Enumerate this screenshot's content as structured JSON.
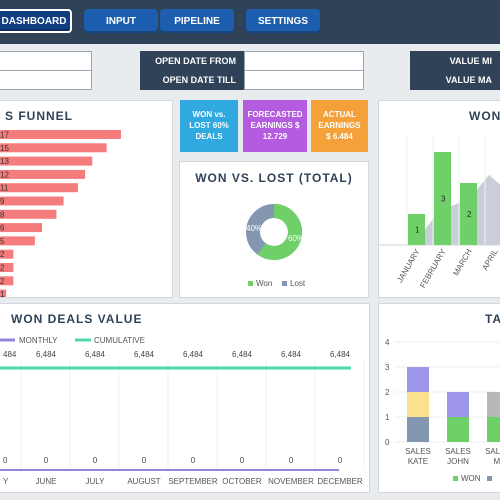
{
  "nav": {
    "dashboard": "DASHBOARD",
    "input": "INPUT",
    "pipeline": "PIPELINE",
    "settings": "SETTINGS"
  },
  "filters": {
    "open_date_from": "OPEN DATE FROM",
    "open_date_till": "OPEN DATE TILL",
    "value_min": "VALUE MI",
    "value_max": "VALUE MA"
  },
  "funnel": {
    "title": "S FUNNEL",
    "values": [
      17,
      15,
      13,
      12,
      11,
      9,
      8,
      6,
      5,
      2,
      2,
      2,
      1
    ],
    "color": "#f47c7c"
  },
  "kpis": [
    {
      "line1": "WON vs.",
      "line2": "LOST 60%",
      "line3": "DEALS",
      "color": "#2fa9e0"
    },
    {
      "line1": "FORECASTED",
      "line2": "EARNINGS $",
      "line3": "12.729",
      "color": "#b45be0"
    },
    {
      "line1": "ACTUAL",
      "line2": "EARNINGS",
      "line3": "$ 6.484",
      "color": "#f4a13a"
    }
  ],
  "won_lost": {
    "title": "WON VS. LOST (TOTAL)",
    "won_pct": 60,
    "lost_pct": 40,
    "won_label": "60%",
    "lost_label": "40%",
    "legend_won": "Won",
    "legend_lost": "Lost",
    "won_color": "#6fd06a",
    "lost_color": "#8497b0"
  },
  "won_monthly": {
    "title": "WON",
    "months": [
      "JANUARY",
      "FEBRUARY",
      "MARCH",
      "APRIL"
    ],
    "values": [
      1,
      3,
      2,
      null
    ],
    "bar_color": "#6fd06a"
  },
  "won_deals_value": {
    "title": "WON DEALS VALUE",
    "legend_monthly": "MONTHLY",
    "legend_cumulative": "CUMULATIVE",
    "monthly_color": "#8f86e0",
    "cumulative_color": "#4dd9b0"
  },
  "chart_data": [
    {
      "type": "line",
      "title": "WON DEALS VALUE",
      "categories": [
        "Y",
        "JUNE",
        "JULY",
        "AUGUST",
        "SEPTEMBER",
        "OCTOBER",
        "NOVEMBER",
        "DECEMBER"
      ],
      "series": [
        {
          "name": "MONTHLY",
          "values": [
            0,
            0,
            0,
            0,
            0,
            0,
            0,
            0
          ]
        },
        {
          "name": "CUMULATIVE",
          "values": [
            6484,
            6484,
            6484,
            6484,
            6484,
            6484,
            6484,
            6484
          ]
        }
      ],
      "top_labels": [
        "484",
        "6,484",
        "6,484",
        "6,484",
        "6,484",
        "6,484",
        "6,484",
        "6,484"
      ],
      "bottom_labels": [
        "0",
        "0",
        "0",
        "0",
        "0",
        "0",
        "0",
        "0"
      ]
    },
    {
      "type": "bar",
      "title": "TA",
      "categories": [
        "SALES KATE",
        "SALES JOHN",
        "SALES MI"
      ],
      "category_lines": [
        [
          "SALES",
          "KATE"
        ],
        [
          "SALES",
          "JOHN"
        ],
        [
          "SALES",
          "MI"
        ]
      ],
      "ylim": [
        0,
        4
      ],
      "yticks": [
        "0",
        "1",
        "2",
        "3",
        "4"
      ],
      "series": [
        {
          "name": "WON",
          "color": "#6fd06a",
          "values": [
            0,
            1,
            1
          ]
        },
        {
          "name": "",
          "color": "#8497b0",
          "values": [
            1,
            0,
            0
          ]
        },
        {
          "name": "",
          "color": "#fbe08e",
          "values": [
            1,
            0,
            0
          ]
        },
        {
          "name": "",
          "color": "#9d96ea",
          "values": [
            1,
            1,
            0
          ]
        },
        {
          "name": "",
          "color": "#b8b8b8",
          "values": [
            0,
            0,
            1
          ]
        }
      ],
      "legend_won": "WON"
    }
  ]
}
